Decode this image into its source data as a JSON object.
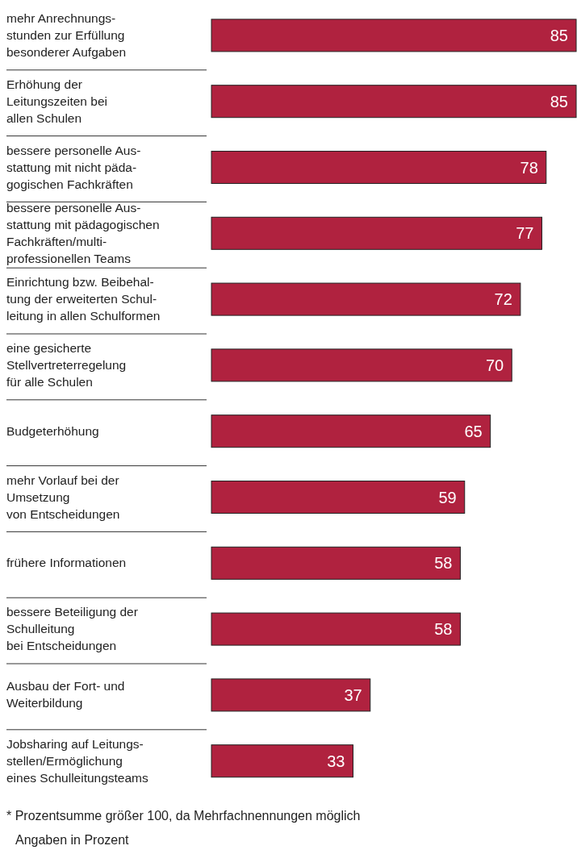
{
  "chart_data": {
    "type": "bar",
    "orientation": "horizontal",
    "categories": [
      "mehr Anrechnungs-\nstunden zur Erfüllung\nbesonderer Aufgaben",
      "Erhöhung der\nLeitungszeiten bei\nallen Schulen",
      "bessere personelle Aus-\nstattung mit nicht päda-\ngogischen Fachkräften",
      "bessere personelle Aus-\nstattung mit pädagogischen\nFachkräften/multi-\nprofessionellen Teams",
      "Einrichtung bzw. Beibehal-\ntung der erweiterten Schul-\nleitung in allen Schulformen",
      "eine gesicherte\nStellvertreterregelung\nfür alle Schulen",
      "Budgeterhöhung",
      "mehr Vorlauf bei der\nUmsetzung\nvon Entscheidungen",
      "frühere Informationen",
      "bessere Beteiligung der\nSchulleitung\nbei Entscheidungen",
      "Ausbau der Fort- und\nWeiterbildung",
      "Jobsharing auf Leitungs-\nstellen/Ermöglichung\neines Schulleitungsteams"
    ],
    "values": [
      85,
      85,
      78,
      77,
      72,
      70,
      65,
      59,
      58,
      58,
      37,
      33
    ],
    "color": "#b0223f",
    "xlim": [
      0,
      85
    ],
    "data_labels": true,
    "annotations": [
      "* Prozentsumme größer 100, da Mehrfachnennungen möglich",
      "Angaben in Prozent"
    ]
  }
}
